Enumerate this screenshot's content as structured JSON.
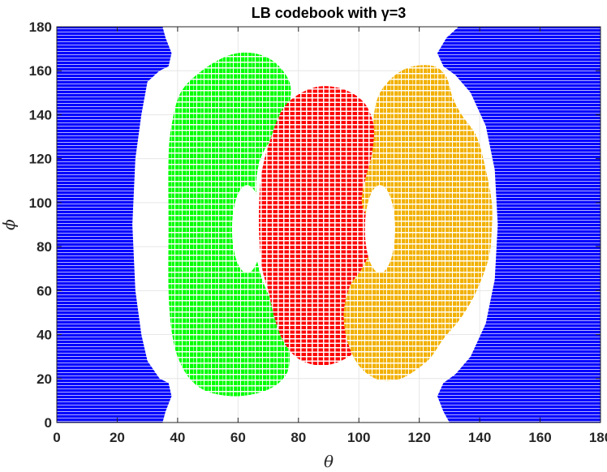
{
  "chart_data": {
    "type": "scatter",
    "title": "LB codebook with γ=3",
    "xlabel": "θ",
    "ylabel": "ϕ",
    "xlim": [
      0,
      180
    ],
    "ylim": [
      0,
      180
    ],
    "xticks": [
      "0",
      "20",
      "40",
      "60",
      "80",
      "100",
      "120",
      "140",
      "160",
      "180"
    ],
    "yticks": [
      "0",
      "20",
      "40",
      "60",
      "80",
      "100",
      "120",
      "140",
      "160",
      "180"
    ],
    "grid": true,
    "legend": "none",
    "series": [
      {
        "color": "#0000ff",
        "marker": "dense-dots",
        "regions": [
          {
            "boundary": [
              [
                0,
                0
              ],
              [
                35,
                0
              ],
              [
                36,
                5
              ],
              [
                38,
                12
              ],
              [
                37,
                18
              ],
              [
                34,
                20
              ],
              [
                30,
                28
              ],
              [
                28,
                40
              ],
              [
                26,
                60
              ],
              [
                25,
                90
              ],
              [
                26,
                120
              ],
              [
                28,
                140
              ],
              [
                30,
                155
              ],
              [
                34,
                160
              ],
              [
                37,
                162
              ],
              [
                38,
                168
              ],
              [
                36,
                175
              ],
              [
                35,
                180
              ],
              [
                0,
                180
              ]
            ]
          },
          {
            "boundary": [
              [
                180,
                0
              ],
              [
                180,
                180
              ],
              [
                133,
                180
              ],
              [
                129,
                175
              ],
              [
                126,
                168
              ],
              [
                128,
                162
              ],
              [
                132,
                158
              ],
              [
                137,
                150
              ],
              [
                142,
                135
              ],
              [
                145,
                115
              ],
              [
                146,
                90
              ],
              [
                145,
                65
              ],
              [
                142,
                45
              ],
              [
                137,
                30
              ],
              [
                132,
                22
              ],
              [
                128,
                18
              ],
              [
                126,
                12
              ],
              [
                128,
                5
              ],
              [
                130,
                0
              ]
            ]
          }
        ]
      },
      {
        "color": "#00ff00",
        "marker": "short-dashes",
        "regions": [
          {
            "boundary": [
              [
                57,
                167
              ],
              [
                65,
                168
              ],
              [
                72,
                164
              ],
              [
                77,
                155
              ],
              [
                77,
                145
              ],
              [
                74,
                135
              ],
              [
                68,
                122
              ],
              [
                66,
                110
              ],
              [
                66,
                100
              ],
              [
                64,
                93
              ],
              [
                64,
                82
              ],
              [
                66,
                75
              ],
              [
                68,
                65
              ],
              [
                72,
                52
              ],
              [
                75,
                42
              ],
              [
                77,
                32
              ],
              [
                76,
                22
              ],
              [
                70,
                15
              ],
              [
                60,
                12
              ],
              [
                50,
                14
              ],
              [
                44,
                20
              ],
              [
                40,
                30
              ],
              [
                38,
                42
              ],
              [
                37,
                60
              ],
              [
                37,
                90
              ],
              [
                37,
                120
              ],
              [
                38,
                135
              ],
              [
                41,
                150
              ],
              [
                48,
                160
              ]
            ]
          }
        ],
        "hole": {
          "center": [
            63,
            88
          ],
          "r_theta": 5,
          "r_phi": 20
        }
      },
      {
        "color": "#ff0000",
        "marker": "dots",
        "regions": [
          {
            "boundary": [
              [
                88,
                153
              ],
              [
                96,
                151
              ],
              [
                102,
                145
              ],
              [
                105,
                135
              ],
              [
                106,
                123
              ],
              [
                107,
                110
              ],
              [
                106,
                100
              ],
              [
                106,
                90
              ],
              [
                108,
                80
              ],
              [
                108,
                70
              ],
              [
                105,
                60
              ],
              [
                104,
                45
              ],
              [
                100,
                34
              ],
              [
                94,
                28
              ],
              [
                87,
                26
              ],
              [
                80,
                29
              ],
              [
                75,
                37
              ],
              [
                72,
                48
              ],
              [
                70,
                60
              ],
              [
                68,
                70
              ],
              [
                67,
                85
              ],
              [
                67,
                100
              ],
              [
                68,
                115
              ],
              [
                71,
                130
              ],
              [
                75,
                143
              ],
              [
                81,
                150
              ]
            ]
          }
        ]
      },
      {
        "color": "#f2b100",
        "marker": "short-dashes",
        "regions": [
          {
            "boundary": [
              [
                118,
                162
              ],
              [
                125,
                162
              ],
              [
                129,
                157
              ],
              [
                131,
                148
              ],
              [
                134,
                140
              ],
              [
                139,
                130
              ],
              [
                142,
                115
              ],
              [
                144,
                100
              ],
              [
                144,
                88
              ],
              [
                143,
                75
              ],
              [
                139,
                60
              ],
              [
                134,
                48
              ],
              [
                128,
                38
              ],
              [
                124,
                30
              ],
              [
                120,
                25
              ],
              [
                114,
                20
              ],
              [
                108,
                19
              ],
              [
                103,
                22
              ],
              [
                99,
                28
              ],
              [
                96,
                38
              ],
              [
                95,
                50
              ],
              [
                97,
                62
              ],
              [
                101,
                70
              ],
              [
                104,
                80
              ],
              [
                103,
                92
              ],
              [
                101,
                100
              ],
              [
                102,
                110
              ],
              [
                104,
                120
              ],
              [
                105,
                130
              ],
              [
                105,
                140
              ],
              [
                107,
                150
              ],
              [
                112,
                158
              ]
            ]
          }
        ],
        "hole": {
          "center": [
            107,
            88
          ],
          "r_theta": 5,
          "r_phi": 20
        }
      }
    ]
  }
}
